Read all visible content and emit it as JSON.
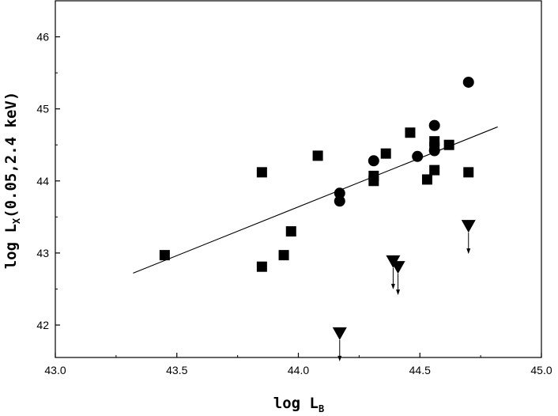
{
  "chart_data": {
    "type": "scatter",
    "title": "",
    "xlabel": {
      "main": "log L",
      "sub": "B"
    },
    "ylabel": {
      "main": "log L",
      "sub": "X",
      "rest": "(0.05,2.4 keV)"
    },
    "xlim": [
      43.0,
      45.0
    ],
    "ylim": [
      41.55,
      46.5
    ],
    "xticks": [
      "43.0",
      "43.5",
      "44.0",
      "44.5",
      "45.0"
    ],
    "yticks": [
      "42",
      "43",
      "44",
      "45",
      "46"
    ],
    "grid": false,
    "legend": "none",
    "colors": {
      "marker": "#000000",
      "axis": "#000000"
    },
    "series": [
      {
        "marker": "square",
        "points": [
          [
            43.45,
            42.97
          ],
          [
            43.85,
            42.81
          ],
          [
            43.85,
            44.12
          ],
          [
            43.94,
            42.97
          ],
          [
            43.97,
            43.3
          ],
          [
            44.08,
            44.35
          ],
          [
            44.31,
            44.0
          ],
          [
            44.31,
            44.07
          ],
          [
            44.36,
            44.38
          ],
          [
            44.46,
            44.67
          ],
          [
            44.53,
            44.02
          ],
          [
            44.56,
            44.15
          ],
          [
            44.56,
            44.47
          ],
          [
            44.56,
            44.55
          ],
          [
            44.62,
            44.5
          ],
          [
            44.7,
            44.12
          ]
        ]
      },
      {
        "marker": "circle",
        "points": [
          [
            44.17,
            43.72
          ],
          [
            44.17,
            43.83
          ],
          [
            44.31,
            44.28
          ],
          [
            44.49,
            44.34
          ],
          [
            44.56,
            44.42
          ],
          [
            44.56,
            44.77
          ],
          [
            44.7,
            45.37
          ]
        ]
      },
      {
        "marker": "triangle-down",
        "upper_limit": true,
        "points": [
          [
            44.17,
            41.88
          ],
          [
            44.39,
            42.88
          ],
          [
            44.41,
            42.8
          ],
          [
            44.7,
            43.37
          ]
        ]
      }
    ],
    "fit_line": {
      "x": [
        43.32,
        44.82
      ],
      "y": [
        42.72,
        44.75
      ]
    }
  }
}
